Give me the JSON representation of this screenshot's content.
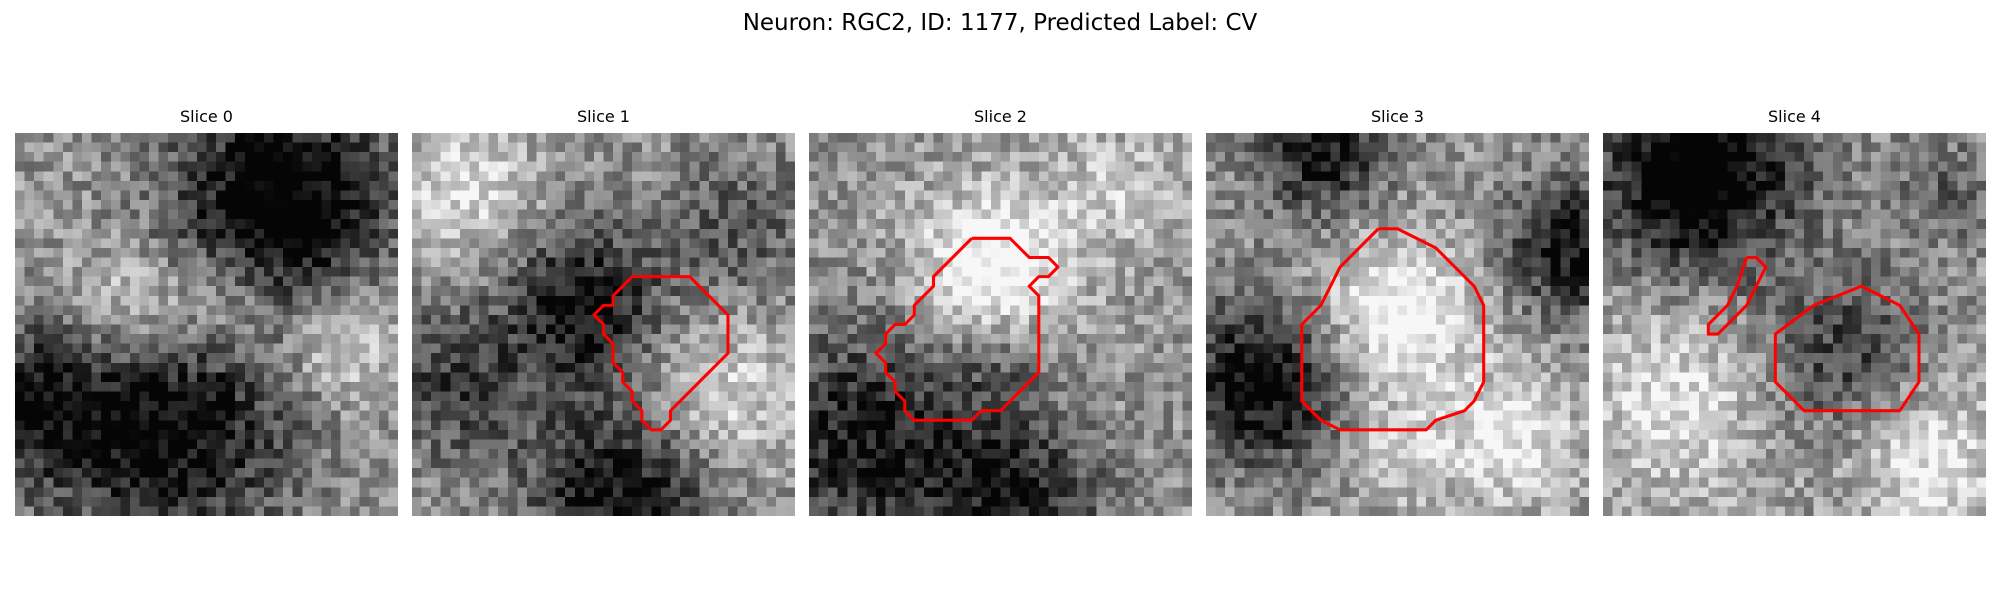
{
  "figure": {
    "title": "Neuron: RGC2, ID: 1177, Predicted Label: CV"
  },
  "panels": [
    {
      "title": "Slice 0",
      "seed": 11,
      "contours": []
    },
    {
      "title": "Slice 1",
      "seed": 23,
      "contours": [
        [
          [
            11.5,
            7.5
          ],
          [
            14.5,
            7.5
          ],
          [
            16.5,
            9.5
          ],
          [
            16.5,
            11.5
          ],
          [
            13.5,
            14.5
          ],
          [
            13.5,
            15
          ],
          [
            13,
            15.5
          ],
          [
            12.5,
            15.5
          ],
          [
            12,
            15
          ],
          [
            12,
            14.5
          ],
          [
            11.5,
            14
          ],
          [
            11.5,
            13.5
          ],
          [
            11,
            13
          ],
          [
            11,
            12.5
          ],
          [
            10.5,
            12
          ],
          [
            10.5,
            11
          ],
          [
            10,
            10.5
          ],
          [
            10,
            10
          ],
          [
            9.5,
            9.5
          ],
          [
            10,
            9
          ],
          [
            10.5,
            9
          ],
          [
            10.5,
            8.5
          ],
          [
            11.5,
            7.5
          ]
        ]
      ]
    },
    {
      "title": "Slice 2",
      "seed": 37,
      "contours": [
        [
          [
            8.5,
            5.5
          ],
          [
            10.5,
            5.5
          ],
          [
            11.5,
            6.5
          ],
          [
            12.5,
            6.5
          ],
          [
            13,
            7
          ],
          [
            12.5,
            7.5
          ],
          [
            12,
            7.5
          ],
          [
            11.5,
            8
          ],
          [
            12,
            8.5
          ],
          [
            12,
            12.5
          ],
          [
            10,
            14.5
          ],
          [
            9,
            14.5
          ],
          [
            8.5,
            15
          ],
          [
            5.5,
            15
          ],
          [
            5,
            14.5
          ],
          [
            5,
            14
          ],
          [
            4.5,
            13.5
          ],
          [
            4.5,
            13
          ],
          [
            4,
            12.5
          ],
          [
            4,
            12
          ],
          [
            3.5,
            11.5
          ],
          [
            4,
            11
          ],
          [
            4,
            10.5
          ],
          [
            4.5,
            10
          ],
          [
            5,
            10
          ],
          [
            5.5,
            9.5
          ],
          [
            5.5,
            9
          ],
          [
            6.5,
            8
          ],
          [
            6.5,
            7.5
          ],
          [
            8.5,
            5.5
          ]
        ]
      ]
    },
    {
      "title": "Slice 3",
      "seed": 53,
      "contours": [
        [
          [
            9,
            5
          ],
          [
            10,
            5
          ],
          [
            11,
            5.5
          ],
          [
            12,
            6
          ],
          [
            13,
            7
          ],
          [
            14,
            8
          ],
          [
            14.5,
            9
          ],
          [
            14.5,
            13
          ],
          [
            14,
            14
          ],
          [
            13.5,
            14.5
          ],
          [
            12,
            15
          ],
          [
            11.5,
            15.5
          ],
          [
            7,
            15.5
          ],
          [
            6,
            15
          ],
          [
            5,
            14
          ],
          [
            5,
            10
          ],
          [
            6,
            9
          ],
          [
            6.5,
            8
          ],
          [
            7,
            7
          ],
          [
            8,
            6
          ],
          [
            9,
            5
          ]
        ]
      ]
    },
    {
      "title": "Slice 4",
      "seed": 71,
      "contours": [
        [
          [
            7.5,
            6.5
          ],
          [
            8,
            6.5
          ],
          [
            8.5,
            7
          ],
          [
            8,
            8
          ],
          [
            7.5,
            9
          ],
          [
            6.5,
            10
          ],
          [
            6,
            10.5
          ],
          [
            5.5,
            10.5
          ],
          [
            5.5,
            10
          ],
          [
            6.5,
            9
          ],
          [
            7,
            8
          ],
          [
            7.5,
            6.5
          ]
        ],
        [
          [
            11,
            9
          ],
          [
            13.5,
            8
          ],
          [
            15.5,
            9
          ],
          [
            16.5,
            10.5
          ],
          [
            16.5,
            13
          ],
          [
            15.5,
            14.5
          ],
          [
            13,
            14.5
          ],
          [
            10.5,
            14.5
          ],
          [
            9,
            13
          ],
          [
            9,
            10.5
          ],
          [
            11,
            9
          ]
        ]
      ]
    }
  ]
}
